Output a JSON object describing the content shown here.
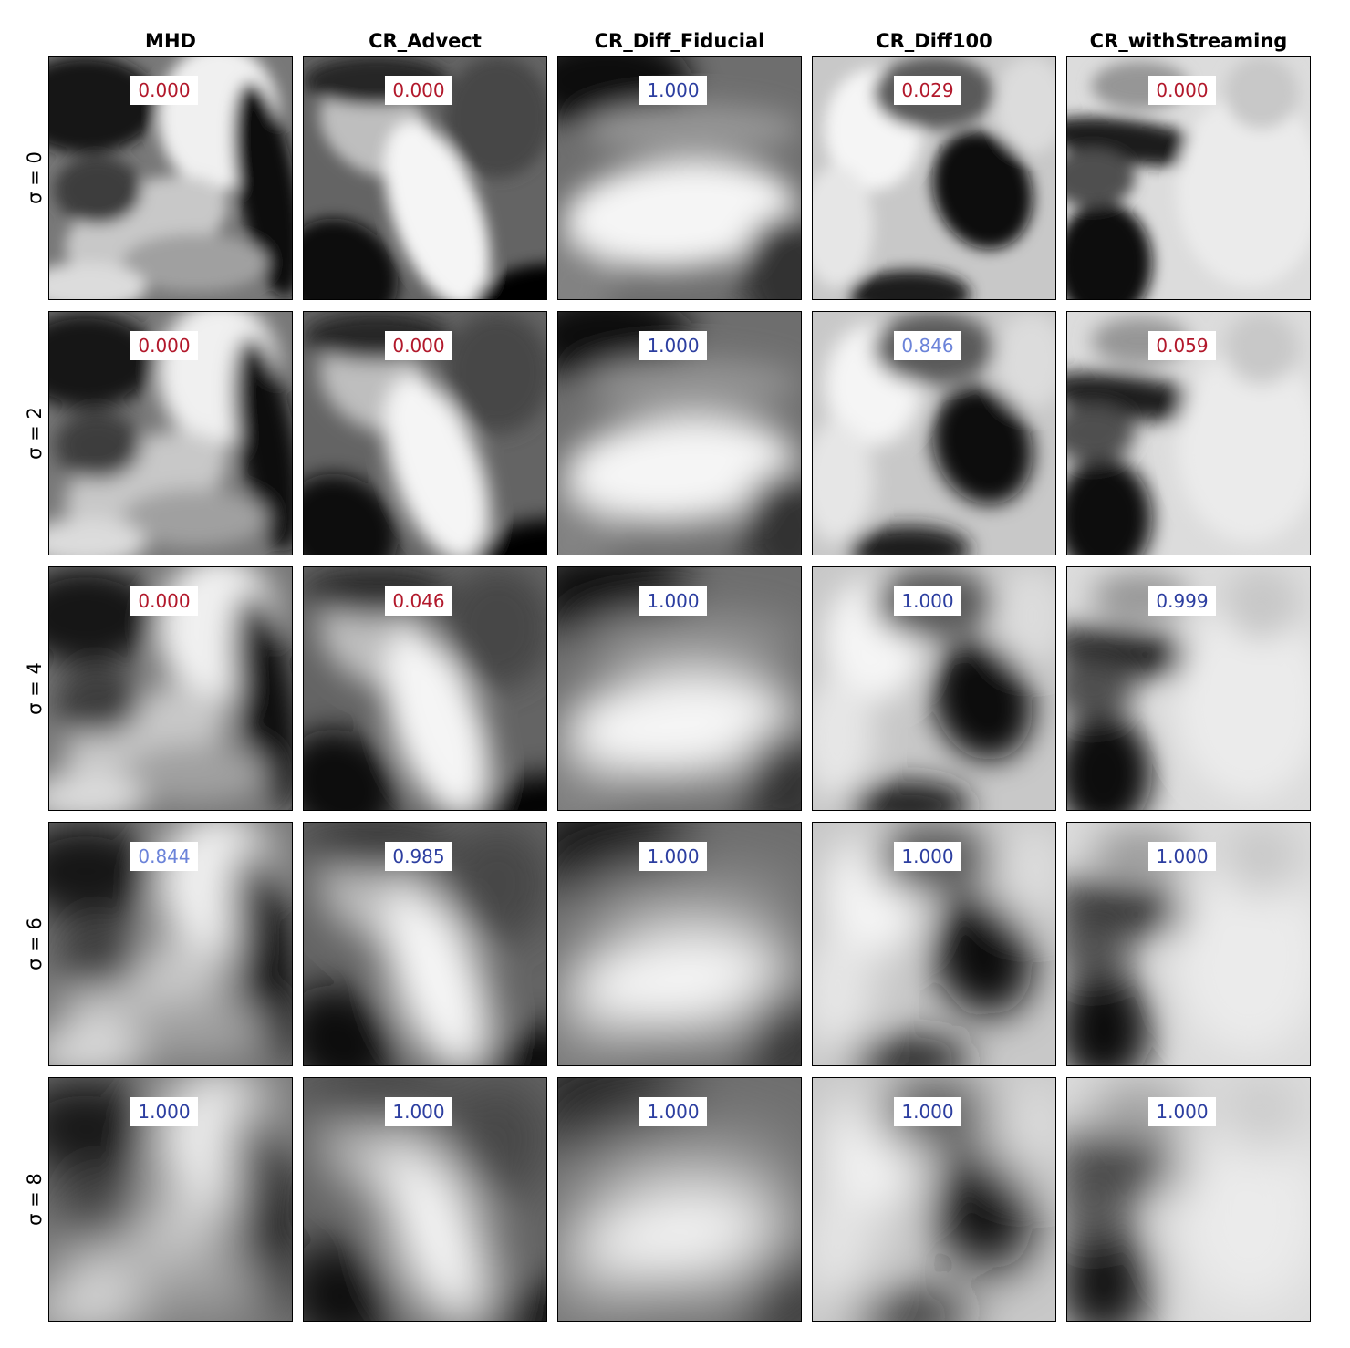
{
  "chart_data": {
    "type": "heatmap",
    "columns": [
      "MHD",
      "CR_Advect",
      "CR_Diff_Fiducial",
      "CR_Diff100",
      "CR_withStreaming"
    ],
    "rows": [
      "σ = 0",
      "σ = 2",
      "σ = 4",
      "σ = 6",
      "σ = 8"
    ],
    "values": [
      [
        "0.000",
        "0.000",
        "1.000",
        "0.029",
        "0.000"
      ],
      [
        "0.000",
        "0.000",
        "1.000",
        "0.846",
        "0.059"
      ],
      [
        "0.000",
        "0.046",
        "1.000",
        "1.000",
        "0.999"
      ],
      [
        "0.844",
        "0.985",
        "1.000",
        "1.000",
        "1.000"
      ],
      [
        "1.000",
        "1.000",
        "1.000",
        "1.000",
        "1.000"
      ]
    ],
    "colormap": "greyscale",
    "value_colors": {
      "low": "#b2182b",
      "mid": "#6b83d9",
      "high": "#2c3ea0"
    }
  }
}
